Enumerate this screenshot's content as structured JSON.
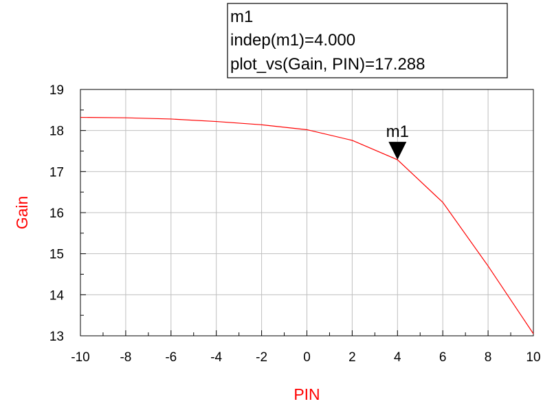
{
  "chart_data": {
    "type": "line",
    "title": "",
    "xlabel": "PIN",
    "ylabel": "Gain",
    "xlim": [
      -10,
      10
    ],
    "ylim": [
      13,
      19
    ],
    "x_ticks": [
      -10,
      -8,
      -6,
      -4,
      -2,
      0,
      2,
      4,
      6,
      8,
      10
    ],
    "y_ticks": [
      13,
      14,
      15,
      16,
      17,
      18,
      19
    ],
    "grid": true,
    "series": [
      {
        "x": [
          -10,
          -8,
          -6,
          -4,
          -2,
          0,
          2,
          4,
          6,
          8,
          10
        ],
        "y": [
          18.32,
          18.31,
          18.28,
          18.22,
          18.14,
          18.02,
          17.76,
          17.288,
          16.25,
          14.7,
          13.05
        ]
      }
    ],
    "marker": {
      "name": "m1",
      "indep": 4.0,
      "value": 17.288,
      "box_lines": [
        "m1",
        "indep(m1)=4.000",
        "plot_vs(Gain, PIN)=17.288"
      ]
    }
  },
  "colors": {
    "series": "#ff0000",
    "axis_title": "#ff0000",
    "grid": "#bfbfbf",
    "frame": "#000000",
    "marker": "#000000"
  }
}
